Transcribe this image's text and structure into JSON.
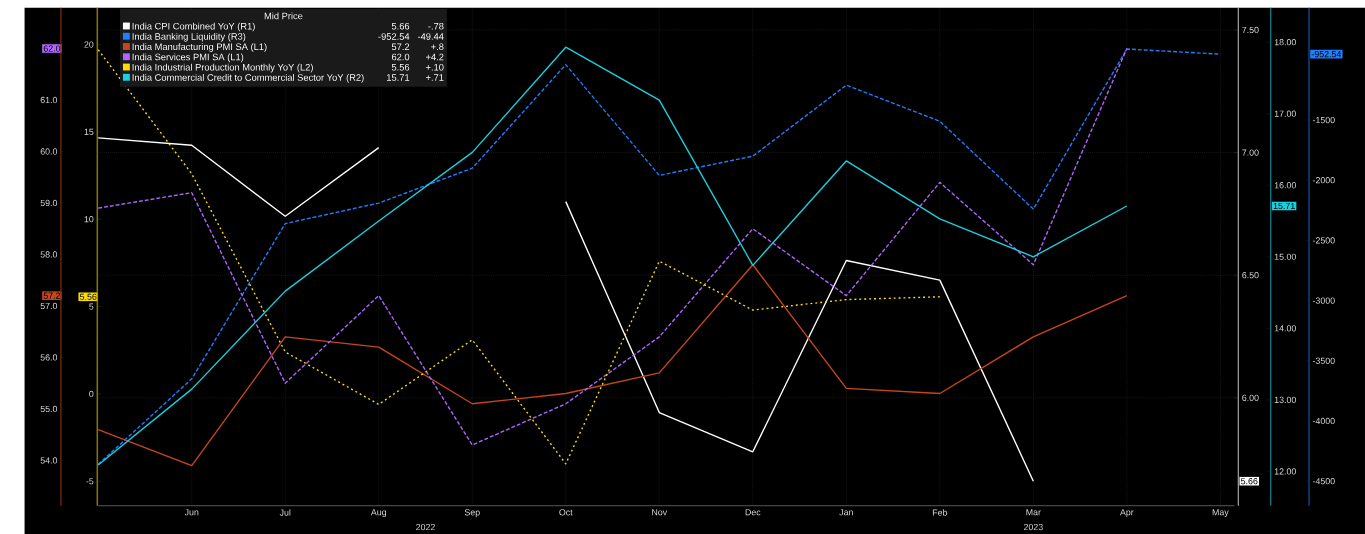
{
  "chart_data": [
    {
      "type": "line",
      "categories": [
        null,
        null,
        null,
        null,
        null,
        null,
        null,
        null,
        null,
        null,
        null,
        null,
        null
      ],
      "series": [
        {
          "name": "India CPI Combined YoY  (R1)",
          "color": "#ffffff",
          "line_style": "solid",
          "values": [
            7.06,
            7.03,
            6.74,
            7.02,
            null,
            6.8,
            5.94,
            5.78,
            6.56,
            6.48,
            5.66,
            null,
            null
          ]
        },
        {
          "name": "India Banking Liquidity  (R3)",
          "color": "#1f7fff",
          "axis": "y2",
          "line_style": "dashed",
          "values": [
            -4360,
            -3650,
            -2360,
            -2190,
            -1900,
            -1040,
            -1960,
            -1800,
            -1210,
            -1510,
            -2240,
            -910,
            -952.54
          ]
        }
      ],
      "ylim": [
        5.56,
        7.59
      ],
      "yticks": [
        {
          "value": 6,
          "label": "6.00"
        },
        {
          "value": 6.5,
          "label": "6.50"
        },
        {
          "value": 7,
          "label": "7.00"
        },
        {
          "value": 7.5,
          "label": "7.50"
        }
      ],
      "y2lim": [
        -4704,
        -568
      ],
      "y2ticks": [
        -4500,
        -4000,
        -3500,
        -3000,
        -2500,
        -2000,
        -1500
      ],
      "legend": "top left",
      "legend_title": "Mid Price",
      "grid": true,
      "tick_labels": "y",
      "annotations": [
        "5.66",
        "-.78",
        "-952.54",
        "-49.44"
      ]
    },
    {
      "type": "line",
      "categories": [
        null,
        "Jun",
        "Jul",
        "Aug",
        "Sep",
        "Oct",
        "Nov",
        "Dec",
        "Jan",
        "Feb",
        "Mar",
        "Apr",
        "May"
      ],
      "series": [
        {
          "name": "India Manufacturing PMI SA  (L1)",
          "color": "#c8461e",
          "line_style": "solid",
          "values": [
            54.6,
            53.9,
            56.4,
            56.2,
            55.1,
            55.3,
            55.7,
            57.8,
            55.4,
            55.3,
            56.4,
            57.2,
            null
          ]
        },
        {
          "name": "India Services PMI SA  (L1)",
          "color": "#b266ff",
          "line_style": "dashed",
          "values": [
            58.9,
            59.2,
            55.5,
            57.2,
            54.3,
            55.1,
            56.4,
            58.5,
            57.2,
            59.4,
            57.8,
            62.0,
            null
          ]
        },
        {
          "name": "India Industrial Production Monthly YoY  (L2)",
          "color": "#ffdd00",
          "axis": "y2",
          "line_style": "dotted",
          "values": [
            19.7,
            12.6,
            2.4,
            -0.6,
            3.1,
            -4.0,
            7.6,
            4.8,
            5.4,
            5.56,
            null,
            null,
            null
          ]
        },
        {
          "name": "India Commercial Credit to Commercial Sector YoY  (R2)",
          "color": "#1ad0e0",
          "axis": "y3",
          "line_style": "solid",
          "values": [
            12.09,
            13.15,
            14.52,
            15.5,
            16.46,
            17.93,
            17.19,
            14.88,
            16.34,
            15.53,
            15.0,
            15.71,
            null
          ]
        }
      ],
      "ylim": [
        53.12,
        62.79
      ],
      "yticks": [
        {
          "value": 54,
          "label": "54.0"
        },
        {
          "value": 55,
          "label": "55.0"
        },
        {
          "value": 56,
          "label": "56.0"
        },
        {
          "value": 57,
          "label": "57.0"
        },
        {
          "value": 58,
          "label": "58.0"
        },
        {
          "value": 59,
          "label": "59.0"
        },
        {
          "value": 60,
          "label": "60.0"
        },
        {
          "value": 61,
          "label": "61.0"
        }
      ],
      "y2lim": [
        -6.4,
        22.1
      ],
      "y2ticks": [
        -5,
        0,
        5,
        10,
        15,
        20
      ],
      "y3lim": [
        11.52,
        18.48
      ],
      "y3ticks": [
        {
          "value": 12,
          "label": "12.00"
        },
        {
          "value": 13,
          "label": "13.00"
        },
        {
          "value": 14,
          "label": "14.00"
        },
        {
          "value": 15,
          "label": "15.00"
        },
        {
          "value": 16,
          "label": "16.00"
        },
        {
          "value": 17,
          "label": "17.00"
        },
        {
          "value": 18,
          "label": "18.00"
        }
      ],
      "legend": "top left",
      "annotations": [
        "57.2",
        "+.8",
        "62.0",
        "+4.2",
        "5.56",
        "+.10",
        "15.71",
        "+.71",
        "2022",
        "2023"
      ]
    }
  ]
}
